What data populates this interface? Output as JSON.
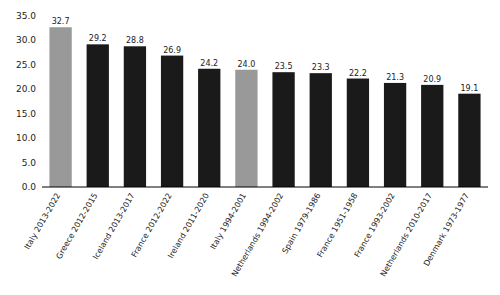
{
  "chart_data": {
    "type": "bar",
    "categories": [
      "Italy 2013-2022",
      "Greece 2012-2015",
      "Iceland 2013-2017",
      "France 2012-2022",
      "Ireland 2011-2020",
      "Italy 1994-2001",
      "Netherlands 1994-2002",
      "Spain 1979-1986",
      "France 1951-1958",
      "France 1993-2002",
      "Netherlands 2010-2017",
      "Denmark 1973-1977"
    ],
    "values": [
      32.7,
      29.2,
      28.8,
      26.9,
      24.2,
      24.0,
      23.5,
      23.3,
      22.2,
      21.3,
      20.9,
      19.1
    ],
    "value_labels": [
      "32.7",
      "29.2",
      "28.8",
      "26.9",
      "24.2",
      "24.0",
      "23.5",
      "23.3",
      "22.2",
      "21.3",
      "20.9",
      "19.1"
    ],
    "colors": [
      "#999999",
      "#1a1a1a",
      "#1a1a1a",
      "#1a1a1a",
      "#1a1a1a",
      "#999999",
      "#1a1a1a",
      "#1a1a1a",
      "#1a1a1a",
      "#1a1a1a",
      "#1a1a1a",
      "#1a1a1a"
    ],
    "ylim": [
      0,
      35
    ],
    "yticks": [
      {
        "value": 0.0,
        "label": "0.0"
      },
      {
        "value": 5.0,
        "label": "5.0"
      },
      {
        "value": 10.0,
        "label": "10.0"
      },
      {
        "value": 15.0,
        "label": "15.0"
      },
      {
        "value": 20.0,
        "label": "20.0"
      },
      {
        "value": 25.0,
        "label": "25.0"
      },
      {
        "value": 30.0,
        "label": "30.0"
      },
      {
        "value": 35.0,
        "label": "35.0"
      }
    ],
    "data_labels": true,
    "grid": false
  }
}
